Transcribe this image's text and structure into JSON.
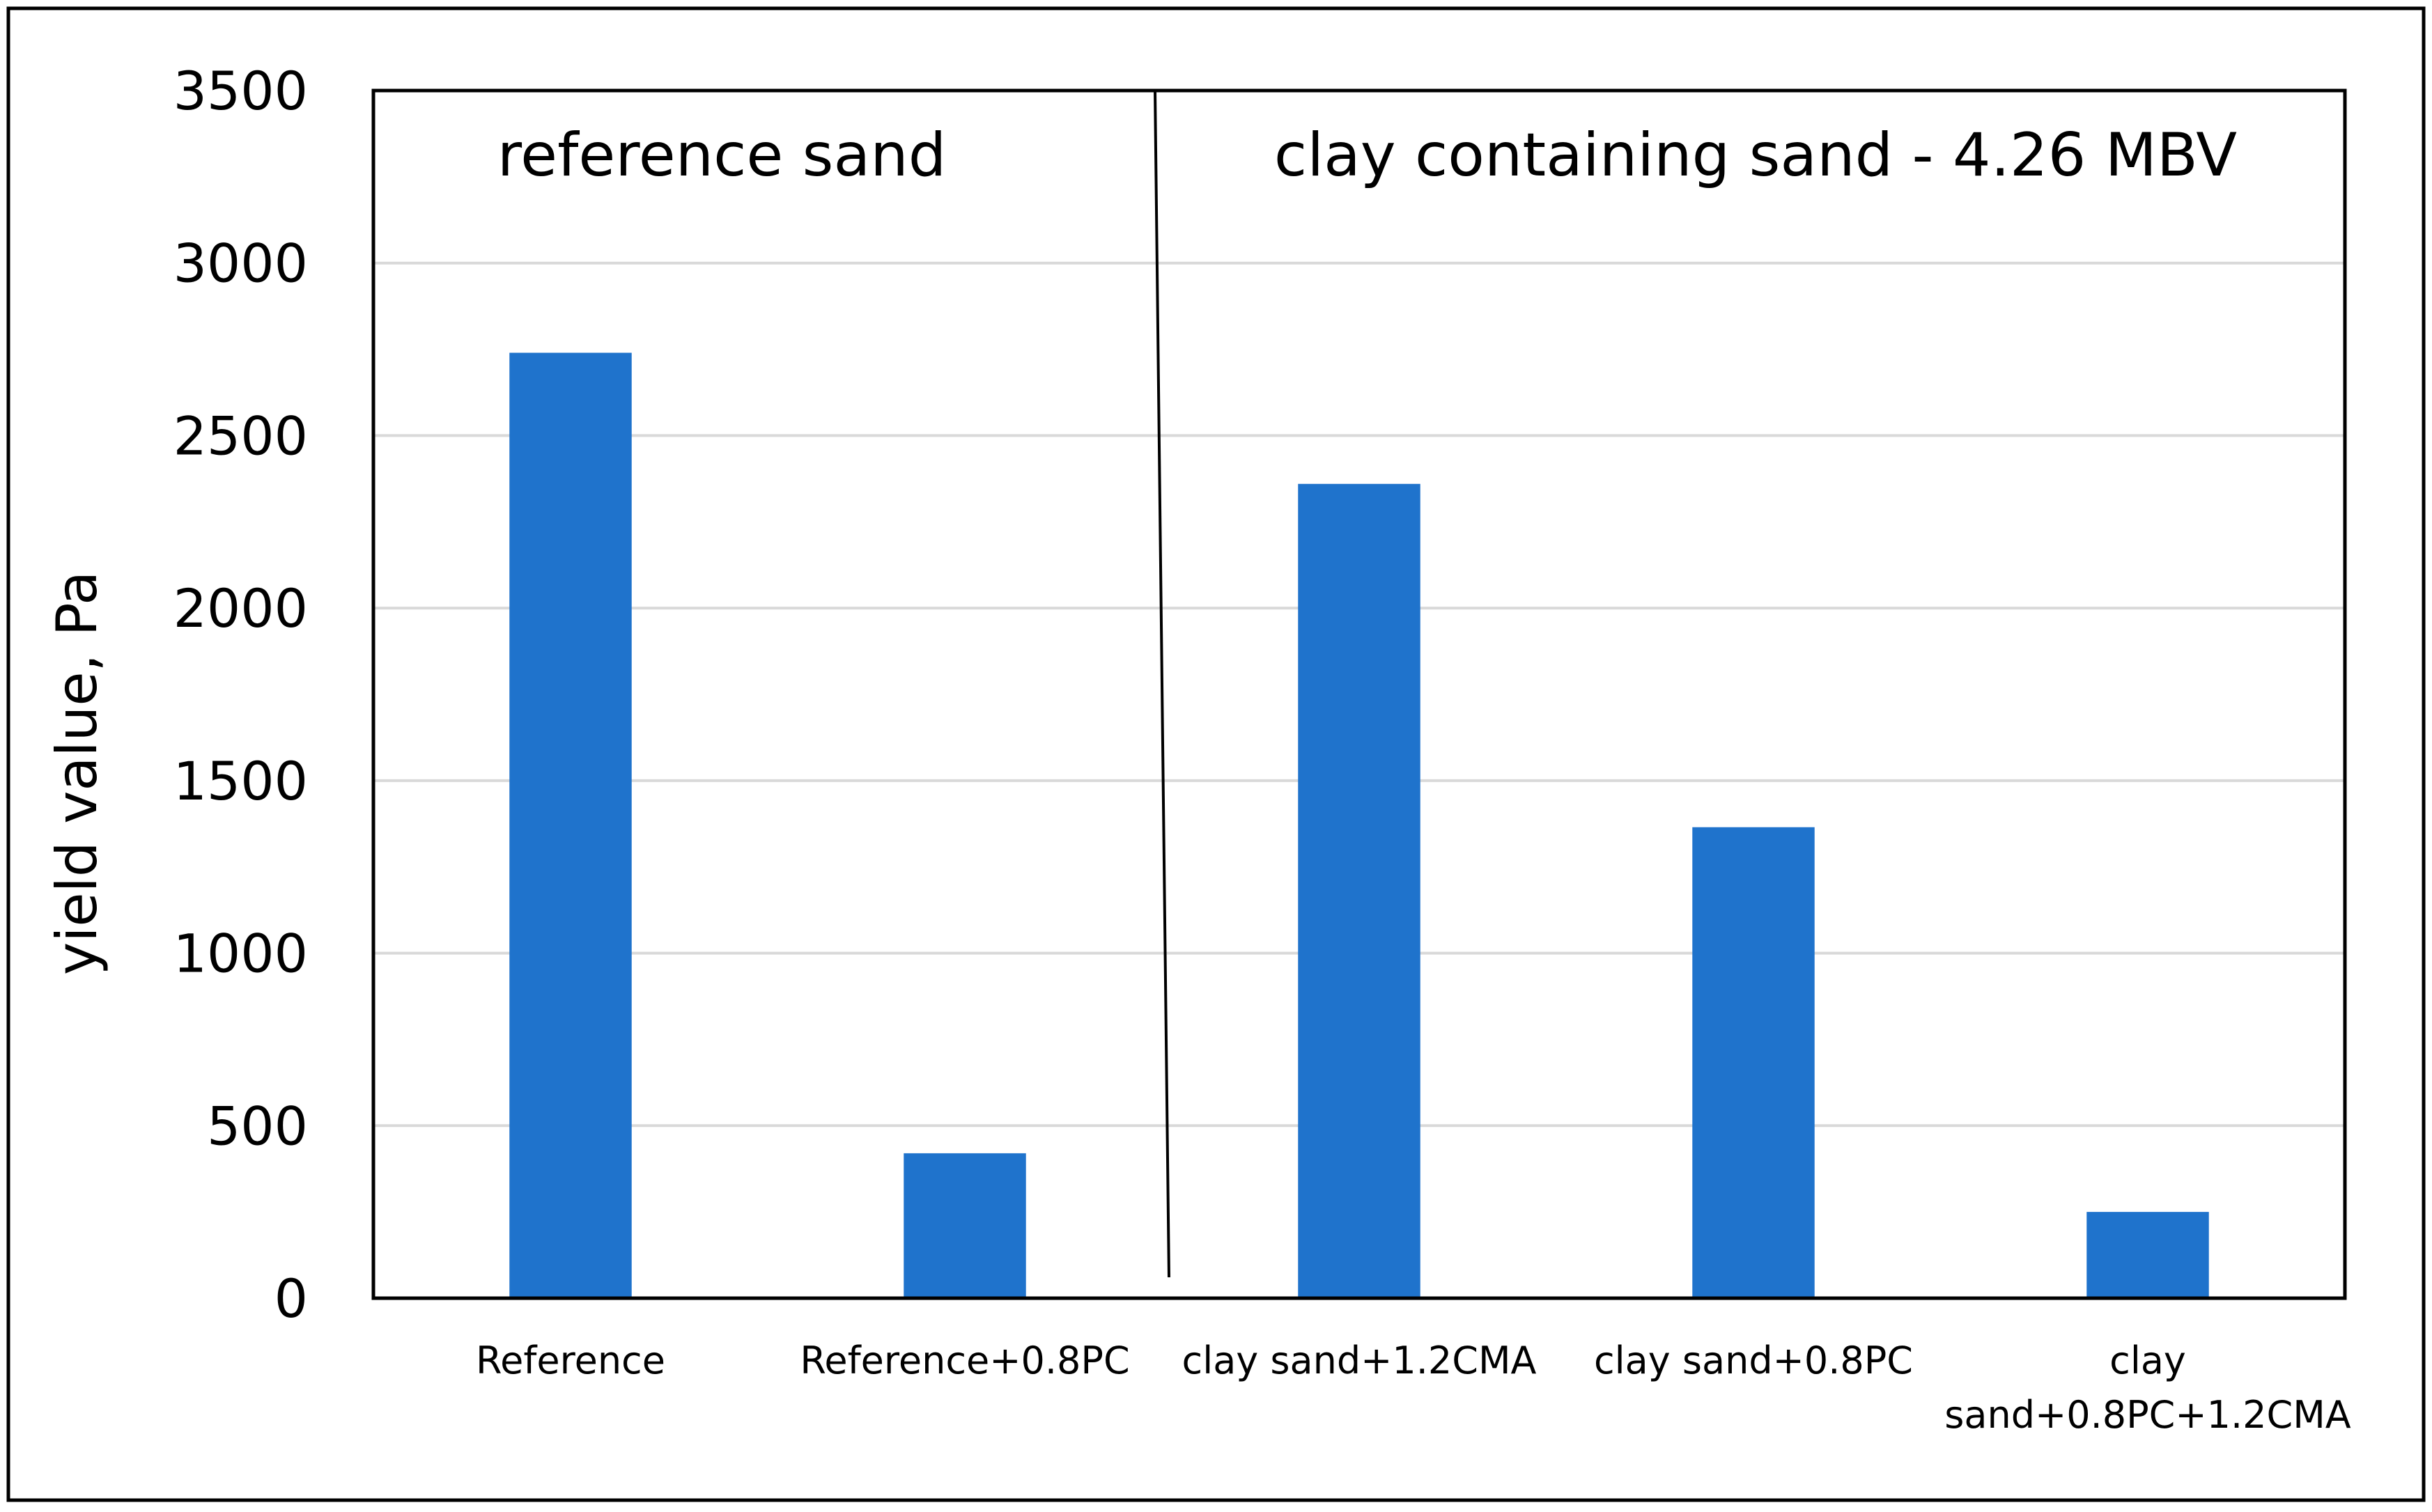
{
  "chart_data": {
    "type": "bar",
    "title": "",
    "xlabel": "",
    "ylabel": "yield value, Pa",
    "ylim": [
      0,
      3500
    ],
    "yticks": [
      0,
      500,
      1000,
      1500,
      2000,
      2500,
      3000,
      3500
    ],
    "grid": true,
    "legend": "none",
    "bar_color": "#1F73CC",
    "categories": [
      [
        "Reference"
      ],
      [
        "Reference+0.8PC"
      ],
      [
        "clay sand+1.2CMA"
      ],
      [
        "clay sand+0.8PC"
      ],
      [
        "clay",
        "sand+0.8PC+1.2CMA"
      ]
    ],
    "values": [
      2740,
      420,
      2360,
      1365,
      250
    ],
    "annotations": [
      {
        "text": "reference sand",
        "group": [
          0,
          1
        ]
      },
      {
        "text": "clay containing sand - 4.26 MBV",
        "group": [
          2,
          4
        ]
      }
    ]
  }
}
